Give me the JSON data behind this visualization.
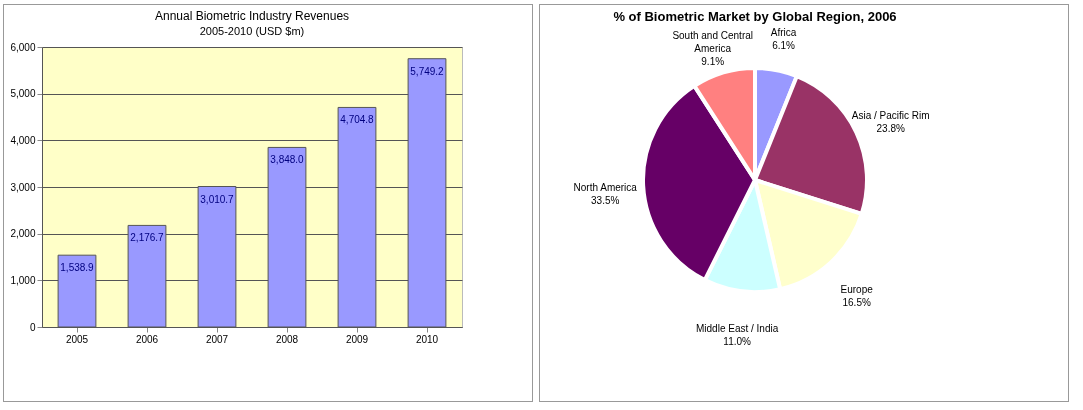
{
  "chart_data": [
    {
      "type": "bar",
      "title": "Annual Biometric Industry Revenues",
      "subtitle": "2005-2010 (USD $m)",
      "categories": [
        "2005",
        "2006",
        "2007",
        "2008",
        "2009",
        "2010"
      ],
      "values": [
        1538.9,
        2176.7,
        3010.7,
        3848.0,
        4704.8,
        5749.2
      ],
      "value_labels": [
        "1,538.9",
        "2,176.7",
        "3,010.7",
        "3,848.0",
        "4,704.8",
        "5,749.2"
      ],
      "color": "#9999ff",
      "ylim": [
        0,
        6000
      ],
      "yticks": [
        0,
        {
          "value": 1000,
          "label": "1,000"
        },
        {
          "value": 2000,
          "label": "2,000"
        },
        {
          "value": 3000,
          "label": "3,000"
        },
        {
          "value": 4000,
          "label": "4,000"
        },
        {
          "value": 5000,
          "label": "5,000"
        },
        {
          "value": 6000,
          "label": "6,000"
        }
      ],
      "grid": "y"
    },
    {
      "type": "pie",
      "title": "% of Biometric Market by Global Region, 2006",
      "categories": [
        "Africa",
        "Asia / Pacific Rim",
        "Europe",
        "Middle East / India",
        "North America",
        "South and Central America"
      ],
      "values": [
        6.1,
        23.8,
        16.5,
        11.0,
        33.5,
        9.1
      ],
      "value_labels": [
        "6.1%",
        "23.8%",
        "16.5%",
        "11.0%",
        "33.5%",
        "9.1%"
      ],
      "colors": [
        "#9999ff",
        "#993366",
        "#ffffcc",
        "#ccffff",
        "#660066",
        "#ff8080"
      ]
    }
  ]
}
